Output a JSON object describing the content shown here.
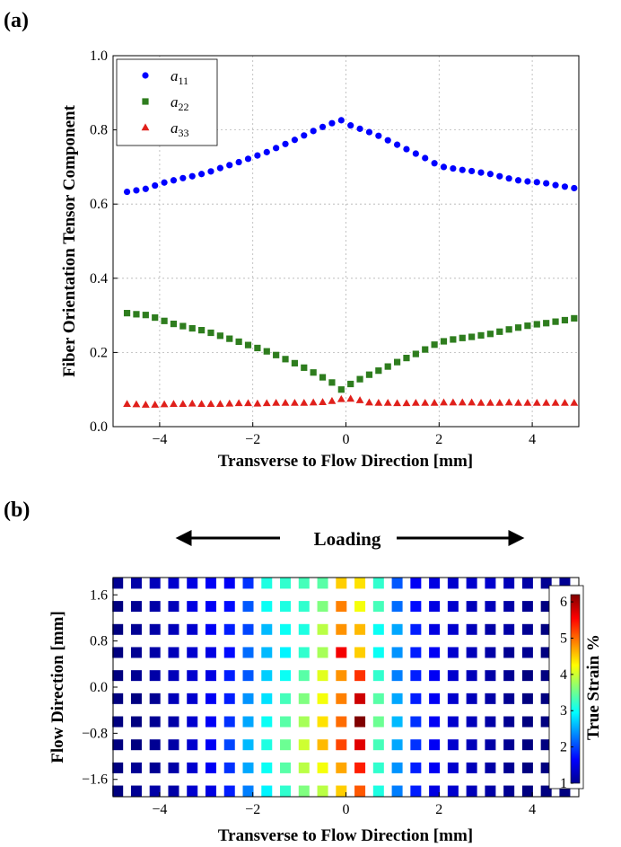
{
  "panels": {
    "a_label": "(a)",
    "b_label": "(b)"
  },
  "chart_data": [
    {
      "type": "scatter",
      "panel": "(a)",
      "xlabel": "Transverse to Flow Direction [mm]",
      "ylabel": "Fiber Orientation Tensor Component",
      "xlim": [
        -5,
        5
      ],
      "ylim": [
        0.0,
        1.0
      ],
      "xticks": [
        -4,
        -2,
        0,
        2,
        4
      ],
      "yticks": [
        0.0,
        0.2,
        0.4,
        0.6,
        0.8,
        1.0
      ],
      "grid": true,
      "legend": "top-left",
      "x": [
        -4.7,
        -4.5,
        -4.3,
        -4.1,
        -3.9,
        -3.7,
        -3.5,
        -3.3,
        -3.1,
        -2.9,
        -2.7,
        -2.5,
        -2.3,
        -2.1,
        -1.9,
        -1.7,
        -1.5,
        -1.3,
        -1.1,
        -0.9,
        -0.7,
        -0.5,
        -0.3,
        -0.1,
        0.1,
        0.3,
        0.5,
        0.7,
        0.9,
        1.1,
        1.3,
        1.5,
        1.7,
        1.9,
        2.1,
        2.3,
        2.5,
        2.7,
        2.9,
        3.1,
        3.3,
        3.5,
        3.7,
        3.9,
        4.1,
        4.3,
        4.5,
        4.7,
        4.9
      ],
      "series": [
        {
          "name": "a_{11}",
          "marker": "circle",
          "color": "#0000ff",
          "values": [
            0.633,
            0.637,
            0.641,
            0.65,
            0.658,
            0.664,
            0.67,
            0.675,
            0.681,
            0.688,
            0.697,
            0.705,
            0.713,
            0.722,
            0.731,
            0.74,
            0.751,
            0.762,
            0.773,
            0.785,
            0.797,
            0.808,
            0.818,
            0.826,
            0.812,
            0.803,
            0.794,
            0.784,
            0.772,
            0.76,
            0.748,
            0.736,
            0.724,
            0.71,
            0.7,
            0.696,
            0.692,
            0.689,
            0.685,
            0.681,
            0.675,
            0.669,
            0.664,
            0.661,
            0.659,
            0.656,
            0.651,
            0.647,
            0.643
          ]
        },
        {
          "name": "a_{22}",
          "marker": "square",
          "color": "#2e7d1e",
          "values": [
            0.306,
            0.303,
            0.301,
            0.294,
            0.285,
            0.277,
            0.271,
            0.265,
            0.26,
            0.253,
            0.245,
            0.237,
            0.229,
            0.22,
            0.212,
            0.203,
            0.193,
            0.182,
            0.171,
            0.159,
            0.146,
            0.133,
            0.119,
            0.1,
            0.115,
            0.128,
            0.14,
            0.151,
            0.162,
            0.174,
            0.185,
            0.196,
            0.208,
            0.221,
            0.23,
            0.235,
            0.239,
            0.242,
            0.246,
            0.25,
            0.256,
            0.262,
            0.267,
            0.272,
            0.276,
            0.279,
            0.283,
            0.287,
            0.292
          ]
        },
        {
          "name": "a_{33}",
          "marker": "triangle",
          "color": "#e0201b",
          "values": [
            0.061,
            0.06,
            0.059,
            0.059,
            0.06,
            0.061,
            0.061,
            0.062,
            0.061,
            0.061,
            0.061,
            0.062,
            0.063,
            0.063,
            0.062,
            0.063,
            0.064,
            0.064,
            0.064,
            0.064,
            0.065,
            0.066,
            0.069,
            0.074,
            0.075,
            0.071,
            0.065,
            0.064,
            0.064,
            0.063,
            0.063,
            0.064,
            0.064,
            0.064,
            0.065,
            0.065,
            0.065,
            0.065,
            0.064,
            0.064,
            0.064,
            0.065,
            0.064,
            0.064,
            0.064,
            0.064,
            0.064,
            0.064,
            0.064
          ]
        }
      ]
    },
    {
      "type": "heatmap",
      "panel": "(b)",
      "annotation": "Loading",
      "xlabel": "Transverse to Flow Direction [mm]",
      "ylabel": "Flow Direction [mm]",
      "xlim": [
        -5,
        5
      ],
      "ylim": [
        -1.9,
        1.9
      ],
      "xticks": [
        -4,
        -2,
        0,
        2,
        4
      ],
      "yticks": [
        -1.6,
        -0.8,
        0.0,
        0.8,
        1.6
      ],
      "ytick_labels": [
        "−1.6",
        "−0.8",
        "0.0",
        "0.8",
        "1.6"
      ],
      "colorbar": {
        "label": "True Strain %",
        "min": 1,
        "max": 6.2,
        "ticks": [
          1,
          2,
          3,
          4,
          5,
          6
        ],
        "colormap": "jet"
      },
      "x": [
        -4.9,
        -4.5,
        -4.1,
        -3.7,
        -3.3,
        -2.9,
        -2.5,
        -2.1,
        -1.7,
        -1.3,
        -0.9,
        -0.5,
        -0.1,
        0.3,
        0.7,
        1.1,
        1.5,
        1.9,
        2.3,
        2.7,
        3.1,
        3.5,
        3.9,
        4.3,
        4.7
      ],
      "y": [
        1.8,
        1.4,
        1.0,
        0.6,
        0.2,
        -0.2,
        -0.6,
        -1.0,
        -1.4,
        -1.8
      ],
      "values": [
        [
          1.1,
          1.2,
          1.3,
          1.4,
          1.5,
          1.6,
          1.6,
          1.9,
          3.1,
          3.2,
          3.3,
          3.4,
          4.5,
          4.4,
          3.2,
          2.1,
          1.6,
          1.5,
          1.4,
          1.4,
          1.4,
          1.3,
          1.2,
          1.1,
          1.1
        ],
        [
          1.0,
          1.1,
          1.2,
          1.3,
          1.5,
          1.6,
          1.7,
          2.1,
          3.0,
          3.1,
          3.2,
          3.6,
          4.9,
          4.2,
          3.3,
          2.2,
          1.7,
          1.5,
          1.4,
          1.3,
          1.3,
          1.2,
          1.1,
          1.0,
          1.0
        ],
        [
          1.0,
          1.1,
          1.2,
          1.3,
          1.4,
          1.6,
          1.8,
          2.0,
          2.6,
          3.0,
          3.1,
          3.9,
          4.8,
          4.6,
          3.0,
          2.5,
          1.8,
          1.5,
          1.4,
          1.3,
          1.2,
          1.2,
          1.1,
          1.0,
          1.0
        ],
        [
          1.0,
          1.1,
          1.2,
          1.3,
          1.4,
          1.5,
          1.7,
          2.2,
          2.6,
          2.9,
          3.2,
          3.8,
          5.6,
          4.5,
          3.0,
          2.4,
          1.8,
          1.6,
          1.4,
          1.3,
          1.2,
          1.1,
          1.1,
          1.0,
          1.0
        ],
        [
          1.0,
          1.1,
          1.2,
          1.3,
          1.4,
          1.5,
          1.8,
          2.1,
          2.7,
          3.0,
          3.4,
          4.1,
          4.8,
          5.3,
          3.2,
          2.3,
          1.8,
          1.6,
          1.4,
          1.3,
          1.2,
          1.1,
          1.0,
          1.0,
          1.0
        ],
        [
          1.0,
          1.0,
          1.1,
          1.3,
          1.4,
          1.6,
          1.8,
          2.4,
          2.8,
          3.3,
          3.6,
          4.2,
          4.9,
          5.8,
          3.4,
          2.5,
          1.8,
          1.6,
          1.4,
          1.3,
          1.2,
          1.1,
          1.0,
          1.0,
          1.0
        ],
        [
          1.0,
          1.0,
          1.1,
          1.2,
          1.4,
          1.6,
          1.9,
          2.5,
          3.0,
          3.4,
          3.8,
          4.4,
          5.0,
          6.2,
          3.5,
          2.6,
          1.9,
          1.6,
          1.4,
          1.3,
          1.2,
          1.1,
          1.0,
          1.0,
          1.0
        ],
        [
          1.0,
          1.0,
          1.1,
          1.2,
          1.4,
          1.6,
          2.0,
          2.6,
          3.1,
          3.5,
          4.0,
          4.6,
          5.2,
          5.7,
          3.3,
          2.5,
          1.9,
          1.6,
          1.4,
          1.3,
          1.2,
          1.1,
          1.0,
          1.0,
          1.0
        ],
        [
          1.0,
          1.1,
          1.1,
          1.2,
          1.4,
          1.6,
          1.9,
          2.5,
          3.0,
          3.4,
          3.9,
          4.2,
          4.7,
          5.4,
          3.2,
          2.4,
          1.8,
          1.6,
          1.4,
          1.3,
          1.2,
          1.1,
          1.0,
          1.0,
          1.0
        ],
        [
          1.0,
          1.1,
          1.2,
          1.2,
          1.4,
          1.5,
          1.8,
          2.3,
          2.9,
          3.2,
          3.6,
          3.9,
          4.5,
          5.1,
          3.1,
          2.3,
          1.8,
          1.5,
          1.4,
          1.3,
          1.2,
          1.1,
          1.0,
          1.0,
          1.0
        ]
      ]
    }
  ]
}
